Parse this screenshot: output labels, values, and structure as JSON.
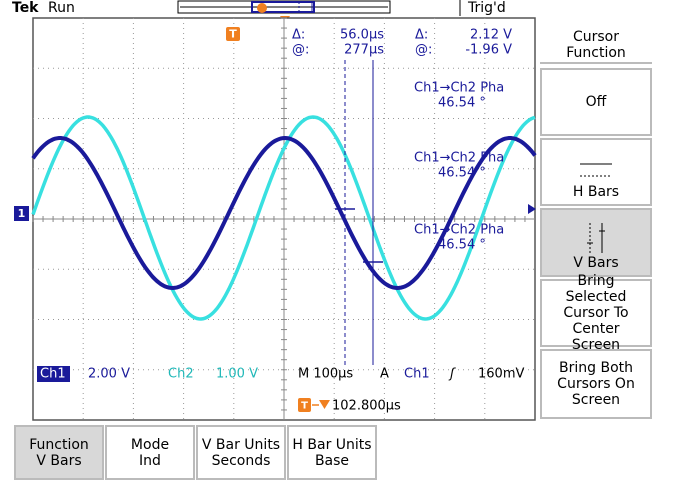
{
  "status_bar": {
    "brand": "Tek",
    "state": "Run",
    "trigger_status": "Trig'd"
  },
  "markers": {
    "channel": "1",
    "trigger": "T"
  },
  "cursor_readout": {
    "time_delta_label": "Δ:",
    "time_delta": "56.0µs",
    "time_position_label": "@:",
    "time_position": "277µs",
    "voltage_delta_label": "Δ:",
    "voltage_delta": "2.12 V",
    "voltage_position_label": "@:",
    "voltage_position": "-1.96 V"
  },
  "measurements": [
    {
      "label": "Ch1→Ch2 Pha",
      "value": "46.54 °"
    },
    {
      "label": "Ch1→Ch2 Pha",
      "value": "46.54 °"
    },
    {
      "label": "Ch1→Ch2 Pha",
      "value": "46.54 °"
    }
  ],
  "channel_settings": {
    "ch1_label": "Ch1",
    "ch1_scale": "2.00 V",
    "ch2_label": "Ch2",
    "ch2_scale": "1.00 V",
    "timebase": "M 100µs",
    "trigger_mode": "A",
    "trigger_source": "Ch1",
    "trigger_slope": "ʃ",
    "trigger_level": "160mV"
  },
  "trigger_position": "102.800µs",
  "side_menu": {
    "title": "Cursor Function",
    "buttons": [
      "Off",
      "H Bars",
      "V Bars",
      "Bring Selected Cursor To Center Screen",
      "Bring Both Cursors On Screen"
    ]
  },
  "bottom_menu": [
    {
      "label": "Function",
      "value": "V Bars"
    },
    {
      "label": "Mode",
      "value": "Ind"
    },
    {
      "label": "V Bar Units",
      "value": "Seconds"
    },
    {
      "label": "H Bar Units",
      "value": "Base"
    }
  ]
}
